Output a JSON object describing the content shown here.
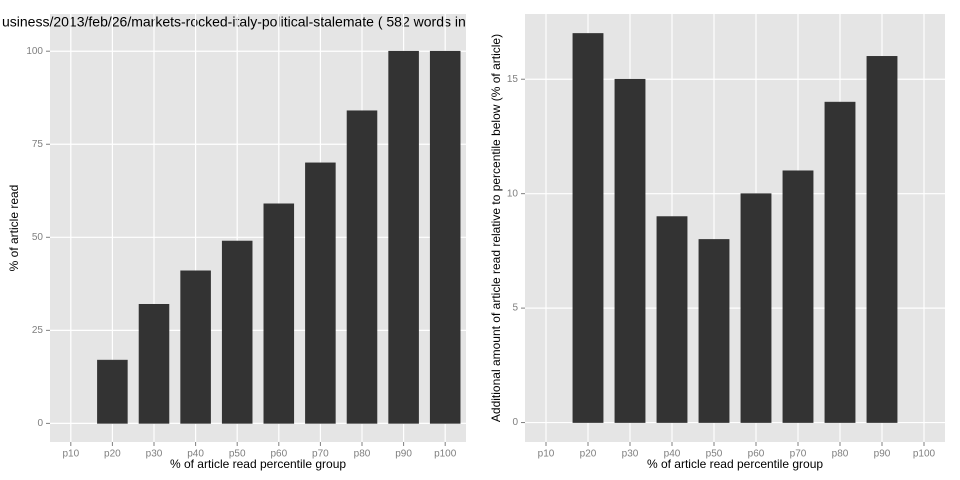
{
  "chart_data": [
    {
      "type": "bar",
      "title": "usiness/2013/feb/26/markets-rocked-italy-political-stalemate ( 582 words in",
      "x_label": "% of article read percentile group",
      "y_label": "% of article read",
      "categories": [
        "p10",
        "p20",
        "p30",
        "p40",
        "p50",
        "p60",
        "p70",
        "p80",
        "p90",
        "p100"
      ],
      "values": [
        0,
        17,
        32,
        41,
        49,
        59,
        70,
        84,
        100,
        100
      ],
      "color": "#333333",
      "ylim": [
        -5,
        110
      ],
      "yticks": [
        0,
        25,
        50,
        75,
        100
      ],
      "grid": true
    },
    {
      "type": "bar",
      "x_label": "% of article read percentile group",
      "y_label": "Additional amount of article read relative to percentile below (% of article)",
      "categories": [
        "p10",
        "p20",
        "p30",
        "p40",
        "p50",
        "p60",
        "p70",
        "p80",
        "p90",
        "p100"
      ],
      "values": [
        0,
        17,
        15,
        9,
        8,
        10,
        11,
        14,
        16,
        0
      ],
      "color": "#333333",
      "ylim": [
        -0.85,
        17.85
      ],
      "yticks": [
        0,
        5,
        10,
        15
      ],
      "grid": true
    }
  ]
}
